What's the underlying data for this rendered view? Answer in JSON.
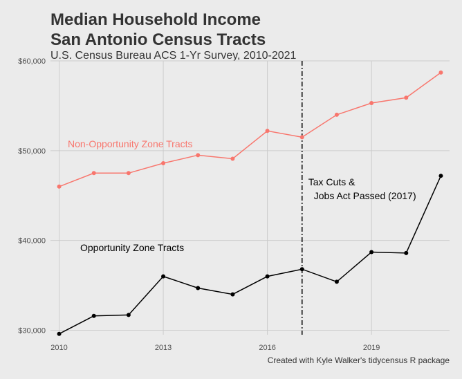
{
  "chart_data": {
    "type": "line",
    "title_lines": [
      "Median Household Income",
      "San Antonio Census Tracts"
    ],
    "subtitle": "U.S. Census Bureau ACS 1-Yr Survey, 2010-2021",
    "caption": "Created with Kyle Walker's tidycensus R package",
    "xlabel": "",
    "ylabel": "",
    "x": [
      2010,
      2011,
      2012,
      2013,
      2014,
      2015,
      2016,
      2017,
      2018,
      2019,
      2020,
      2021
    ],
    "xlim": [
      2009.75,
      2021.25
    ],
    "ylim": [
      29500,
      60000
    ],
    "x_ticks": [
      2010,
      2013,
      2016,
      2019
    ],
    "x_tick_labels": [
      "2010",
      "2013",
      "2016",
      "2019"
    ],
    "y_ticks": [
      30000,
      40000,
      50000,
      60000
    ],
    "y_tick_labels": [
      "$30,000",
      "$40,000",
      "$50,000",
      "$60,000"
    ],
    "grid": true,
    "series": [
      {
        "label": "Non-Opportunity Zone Tracts",
        "color": "#f8766d",
        "values": [
          46000,
          47500,
          47500,
          48600,
          49500,
          49100,
          52200,
          51500,
          54000,
          55300,
          55900,
          58700
        ]
      },
      {
        "label": "Opportunity Zone Tracts",
        "color": "#000000",
        "values": [
          29600,
          31600,
          31700,
          36000,
          34700,
          34000,
          36000,
          36800,
          35400,
          38700,
          38600,
          47200
        ]
      }
    ],
    "vline": {
      "x": 2017,
      "label_lines": [
        "Tax Cuts &",
        "Jobs Act Passed (2017)"
      ]
    }
  }
}
